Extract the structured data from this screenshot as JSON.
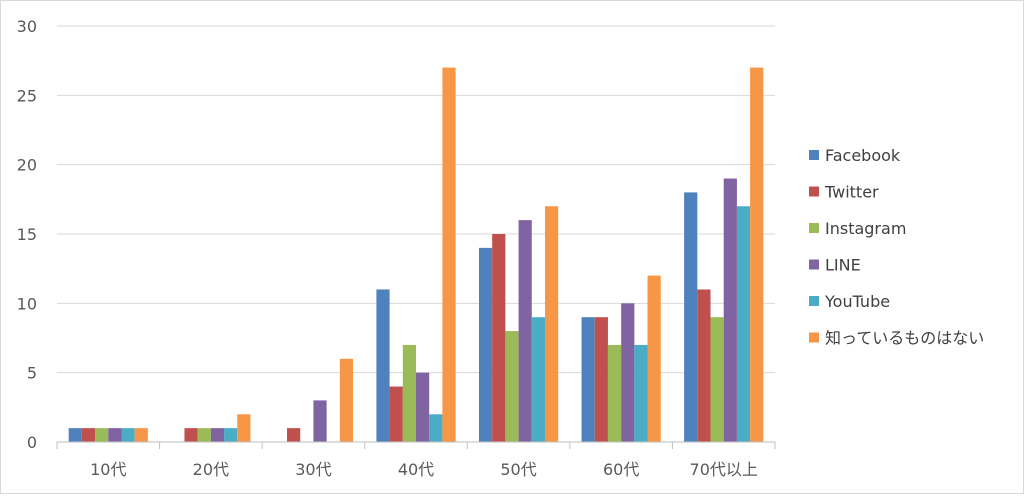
{
  "chart_data": {
    "type": "bar",
    "categories": [
      "10代",
      "20代",
      "30代",
      "40代",
      "50代",
      "60代",
      "70代以上"
    ],
    "series": [
      {
        "name": "Facebook",
        "color": "#4f81bd",
        "values": [
          1,
          0,
          0,
          11,
          14,
          9,
          18
        ]
      },
      {
        "name": "Twitter",
        "color": "#c0504d",
        "values": [
          1,
          1,
          1,
          4,
          15,
          9,
          11
        ]
      },
      {
        "name": "Instagram",
        "color": "#9bbb59",
        "values": [
          1,
          1,
          0,
          7,
          8,
          7,
          9
        ]
      },
      {
        "name": "LINE",
        "color": "#8064a2",
        "values": [
          1,
          1,
          3,
          5,
          16,
          10,
          19
        ]
      },
      {
        "name": "YouTube",
        "color": "#4bacc6",
        "values": [
          1,
          1,
          0,
          2,
          9,
          7,
          17
        ]
      },
      {
        "name": "知っているものはない",
        "color": "#f79646",
        "values": [
          1,
          2,
          6,
          27,
          17,
          12,
          27
        ]
      }
    ],
    "ylim": [
      0,
      30
    ],
    "yticks": [
      0,
      5,
      10,
      15,
      20,
      25,
      30
    ],
    "grid": true,
    "legend": "right",
    "title": "",
    "xlabel": "",
    "ylabel": ""
  }
}
